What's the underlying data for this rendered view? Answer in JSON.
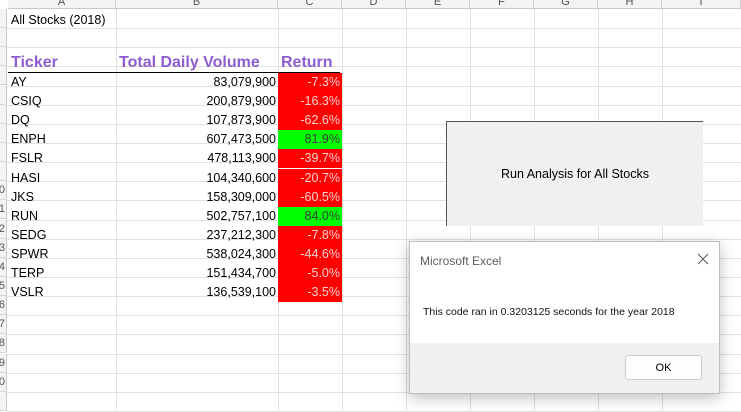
{
  "column_headers": [
    "A",
    "B",
    "C",
    "D",
    "E",
    "F",
    "G",
    "H",
    "I"
  ],
  "row_headers": [
    "",
    "",
    "",
    "",
    "",
    "",
    "",
    "",
    "",
    "0",
    "1",
    "2",
    "3",
    "4",
    "5",
    "6",
    "7",
    "8",
    "9",
    "0",
    ""
  ],
  "title_cell": "All Stocks (2018)",
  "table": {
    "headers": {
      "ticker": "Ticker",
      "volume": "Total Daily Volume",
      "return": "Return"
    },
    "rows": [
      {
        "ticker": "AY",
        "volume": "83,079,900",
        "return": "-7.3%",
        "status": "negative"
      },
      {
        "ticker": "CSIQ",
        "volume": "200,879,900",
        "return": "-16.3%",
        "status": "negative"
      },
      {
        "ticker": "DQ",
        "volume": "107,873,900",
        "return": "-62.6%",
        "status": "negative"
      },
      {
        "ticker": "ENPH",
        "volume": "607,473,500",
        "return": "81.9%",
        "status": "positive"
      },
      {
        "ticker": "FSLR",
        "volume": "478,113,900",
        "return": "-39.7%",
        "status": "negative"
      },
      {
        "ticker": "HASI",
        "volume": "104,340,600",
        "return": "-20.7%",
        "status": "negative"
      },
      {
        "ticker": "JKS",
        "volume": "158,309,000",
        "return": "-60.5%",
        "status": "negative"
      },
      {
        "ticker": "RUN",
        "volume": "502,757,100",
        "return": "84.0%",
        "status": "positive"
      },
      {
        "ticker": "SEDG",
        "volume": "237,212,300",
        "return": "-7.8%",
        "status": "negative"
      },
      {
        "ticker": "SPWR",
        "volume": "538,024,300",
        "return": "-44.6%",
        "status": "negative"
      },
      {
        "ticker": "TERP",
        "volume": "151,434,700",
        "return": "-5.0%",
        "status": "negative"
      },
      {
        "ticker": "VSLR",
        "volume": "136,539,100",
        "return": "-3.5%",
        "status": "negative"
      }
    ]
  },
  "colors": {
    "header": "#8e5dd0",
    "negative": "#ff0000",
    "positive": "#00ff00"
  },
  "run_button": {
    "label": "Run Analysis for All Stocks"
  },
  "dialog": {
    "title": "Microsoft Excel",
    "message": "This code ran in 0.3203125 seconds for the year 2018",
    "ok_label": "OK",
    "close_icon": "close-icon"
  }
}
